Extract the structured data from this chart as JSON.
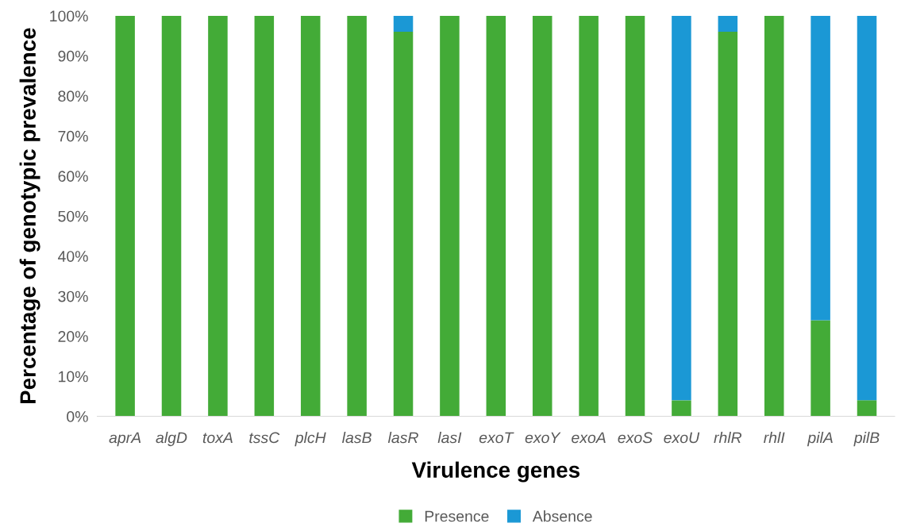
{
  "chart_data": {
    "type": "bar",
    "stacked": true,
    "xlabel": "Virulence genes",
    "ylabel": "Percentage of genotypic prevalence",
    "categories": [
      "aprA",
      "algD",
      "toxA",
      "tssC",
      "plcH",
      "lasB",
      "lasR",
      "lasI",
      "exoT",
      "exoY",
      "exoA",
      "exoS",
      "exoU",
      "rhlR",
      "rhlI",
      "pilA",
      "pilB"
    ],
    "series": [
      {
        "name": "Presence",
        "color": "#43ab37",
        "values": [
          100,
          100,
          100,
          100,
          100,
          100,
          96,
          100,
          100,
          100,
          100,
          100,
          4,
          96,
          100,
          24,
          4
        ]
      },
      {
        "name": "Absence",
        "color": "#1b98d5",
        "values": [
          0,
          0,
          0,
          0,
          0,
          0,
          4,
          0,
          0,
          0,
          0,
          0,
          96,
          4,
          0,
          76,
          96
        ]
      }
    ],
    "ylim": [
      0,
      100
    ],
    "yticks": [
      {
        "value": 0,
        "label": "0%"
      },
      {
        "value": 10,
        "label": "10%"
      },
      {
        "value": 20,
        "label": "20%"
      },
      {
        "value": 30,
        "label": "30%"
      },
      {
        "value": 40,
        "label": "40%"
      },
      {
        "value": 50,
        "label": "50%"
      },
      {
        "value": 60,
        "label": "60%"
      },
      {
        "value": 70,
        "label": "70%"
      },
      {
        "value": 80,
        "label": "80%"
      },
      {
        "value": 90,
        "label": "90%"
      },
      {
        "value": 100,
        "label": "100%"
      }
    ],
    "grid": false,
    "legend": "bottom"
  }
}
